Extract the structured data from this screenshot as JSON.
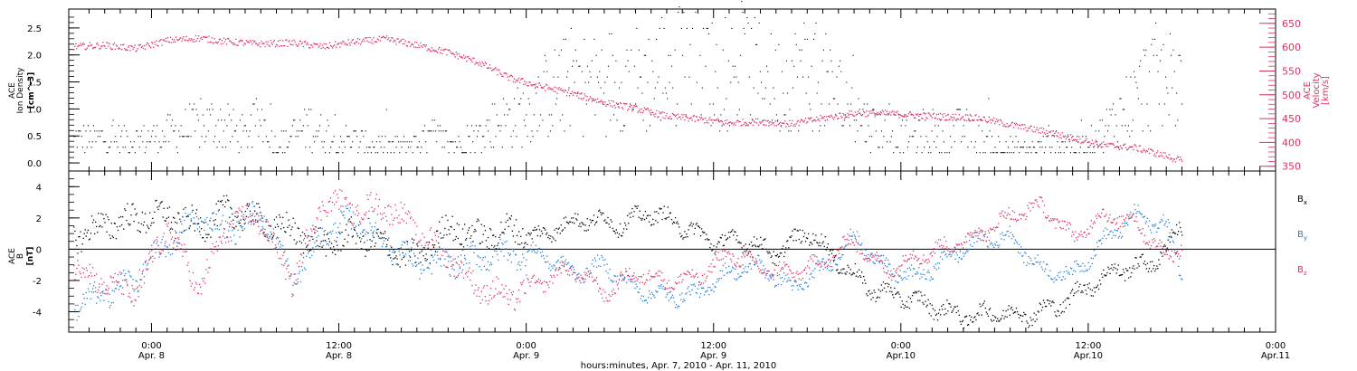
{
  "colors": {
    "black": "#000000",
    "red": "#e0305f",
    "blue": "#1f7fd8"
  },
  "chart_data": [
    {
      "type": "scatter",
      "panel": "top",
      "ylabel_lines": [
        "ACE",
        "Ion Density",
        "[cm^-3]"
      ],
      "y2label_lines": [
        "ACE",
        "Velocity",
        "[km/s]"
      ],
      "ylim": [
        -0.15,
        2.85
      ],
      "y_ticks": [
        "0.0",
        "0.5",
        "1.0",
        "1.5",
        "2.0",
        "2.5"
      ],
      "y2lim": [
        340,
        680
      ],
      "y2_ticks": [
        "350",
        "400",
        "450",
        "500",
        "550",
        "600",
        "650"
      ],
      "series": [
        {
          "axis": "left",
          "color": "#000000",
          "x_hours": [
            0,
            2,
            4,
            6,
            7,
            8,
            10,
            12,
            14,
            16,
            18,
            20,
            22,
            24,
            25,
            26,
            27,
            28,
            30,
            32,
            34,
            35,
            36,
            38,
            40,
            42,
            44,
            46,
            48,
            50,
            52,
            54,
            56,
            58,
            59.5,
            61,
            63,
            64,
            66
          ],
          "y": [
            0.45,
            0.6,
            0.75,
            0.5,
            0.85,
            0.3,
            0.7,
            0.45,
            0.35,
            0.3,
            0.5,
            0.3,
            0.75,
            0.95,
            1.2,
            1.4,
            1.55,
            1.45,
            1.6,
            1.55,
            2.2,
            2.3,
            1.6,
            1.75,
            1.45,
            1.75,
            1.25,
            0.7,
            0.55,
            0.45,
            0.65,
            0.35,
            0.25,
            0.4,
            0.3,
            0.6,
            1.2,
            1.6,
            1.5
          ]
        },
        {
          "axis": "right",
          "color": "#e0305f",
          "x_hours": [
            -5,
            -3,
            -1,
            1,
            3,
            5,
            7,
            9,
            11,
            13,
            15,
            17,
            19,
            21,
            23,
            25,
            27,
            29,
            31,
            33,
            35,
            37,
            39,
            41,
            43,
            45,
            47,
            49,
            51,
            53,
            55,
            57,
            59,
            61,
            63,
            65,
            66
          ],
          "y": [
            602,
            605,
            598,
            615,
            620,
            612,
            608,
            610,
            602,
            612,
            618,
            605,
            590,
            568,
            535,
            518,
            503,
            485,
            472,
            456,
            450,
            442,
            445,
            440,
            452,
            462,
            462,
            458,
            455,
            452,
            438,
            425,
            410,
            395,
            390,
            372,
            362
          ]
        }
      ]
    },
    {
      "type": "scatter",
      "panel": "bottom",
      "ylabel_lines": [
        "ACE",
        "B",
        "[nT]"
      ],
      "ylim": [
        -5.3,
        5.0
      ],
      "y_ticks": [
        "-4",
        "-2",
        "0",
        "2",
        "4"
      ],
      "zero_line": true,
      "x_ticks": [
        {
          "time": "0:00",
          "date": "Apr. 8"
        },
        {
          "time": "12:00",
          "date": "Apr. 8"
        },
        {
          "time": "0:00",
          "date": "Apr. 9"
        },
        {
          "time": "12:00",
          "date": "Apr. 9"
        },
        {
          "time": "0:00",
          "date": "Apr.10"
        },
        {
          "time": "12:00",
          "date": "Apr.10"
        },
        {
          "time": "0:00",
          "date": "Apr.11"
        }
      ],
      "xlabel": "hours:minutes, Apr.  7, 2010 - Apr. 11, 2010",
      "series": [
        {
          "name": "B_x",
          "color": "#000000",
          "x_hours": [
            -5,
            -3,
            -1,
            1,
            3,
            5,
            7,
            9,
            11,
            13,
            15,
            17,
            19,
            21,
            23,
            25,
            26,
            28,
            30,
            32,
            34,
            36,
            38,
            40,
            42,
            44,
            46,
            48,
            50,
            52,
            54,
            56,
            58,
            60,
            62,
            64,
            66
          ],
          "y": [
            0.8,
            1.6,
            2.0,
            2.2,
            1.5,
            2.5,
            1.8,
            1.2,
            0.3,
            1.0,
            0.2,
            -0.6,
            1.5,
            0.8,
            1.3,
            0.8,
            1.5,
            2.0,
            1.6,
            2.4,
            1.5,
            0.5,
            0.6,
            -0.3,
            1.2,
            -0.8,
            -2.5,
            -3.0,
            -3.6,
            -4.3,
            -4.0,
            -4.2,
            -3.6,
            -2.3,
            -1.2,
            -1.0,
            1.5
          ]
        },
        {
          "name": "B_y",
          "color": "#1f7fd8",
          "x_hours": [
            -5,
            -3,
            -1,
            1,
            3,
            5,
            7,
            9,
            11,
            13,
            15,
            17,
            19,
            21,
            23,
            25,
            27,
            29,
            31,
            33,
            35,
            37,
            39,
            41,
            43,
            45,
            47,
            49,
            51,
            53,
            55,
            57,
            59,
            61,
            63,
            65,
            66
          ],
          "y": [
            -3.6,
            -2.8,
            -1.8,
            0.5,
            2.0,
            1.2,
            2.5,
            -2.0,
            1.0,
            2.0,
            0.5,
            -1.0,
            -0.8,
            -0.5,
            -0.2,
            -0.3,
            -1.5,
            -1.0,
            -2.5,
            -3.0,
            -2.8,
            -1.4,
            -1.0,
            -2.5,
            -1.2,
            0.8,
            -1.2,
            -1.8,
            -0.5,
            0.6,
            0.8,
            -1.3,
            -1.6,
            0.6,
            2.2,
            1.5,
            -1.6
          ]
        },
        {
          "name": "B_z",
          "color": "#e0305f",
          "x_hours": [
            -5,
            -3,
            -1,
            1,
            3,
            5,
            7,
            9,
            11,
            13,
            15,
            17,
            19,
            21,
            23,
            25,
            27,
            29,
            31,
            33,
            35,
            37,
            39,
            41,
            43,
            45,
            47,
            49,
            51,
            53,
            55,
            57,
            59,
            61,
            63,
            65,
            66
          ],
          "y": [
            -1.0,
            -2.2,
            -2.8,
            1.5,
            -2.5,
            1.8,
            2.0,
            -2.0,
            3.2,
            2.5,
            2.8,
            1.2,
            -0.5,
            -2.5,
            -3.0,
            -2.0,
            -1.2,
            -2.8,
            -1.5,
            -2.0,
            -1.8,
            -0.2,
            -1.2,
            -1.5,
            -0.8,
            0.6,
            -1.4,
            -0.4,
            0.2,
            1.0,
            2.2,
            2.8,
            0.8,
            2.2,
            1.8,
            -0.5,
            0.3
          ]
        }
      ],
      "legend": [
        {
          "label": "B",
          "sub": "x",
          "color": "#000000"
        },
        {
          "label": "B",
          "sub": "y",
          "color": "#1f7fd8"
        },
        {
          "label": "B",
          "sub": "z",
          "color": "#e0305f"
        }
      ]
    }
  ]
}
